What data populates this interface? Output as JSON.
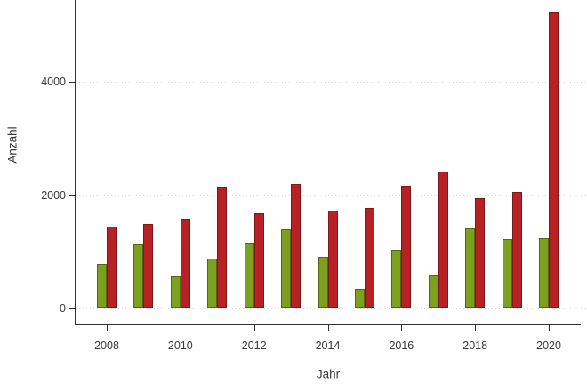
{
  "chart_data": {
    "type": "bar",
    "title": "",
    "xlabel": "Jahr",
    "ylabel": "Anzahl",
    "categories": [
      "2008",
      "2009",
      "2010",
      "2011",
      "2012",
      "2013",
      "2014",
      "2015",
      "2016",
      "2017",
      "2018",
      "2019",
      "2020"
    ],
    "series": [
      {
        "name": "green-series",
        "color": "#7ca11e",
        "values": [
          780,
          1130,
          570,
          880,
          1150,
          1390,
          910,
          350,
          1030,
          580,
          1410,
          1220,
          1240
        ]
      },
      {
        "name": "red-series",
        "color": "#b72025",
        "values": [
          1440,
          1490,
          1570,
          2150,
          1680,
          2200,
          1720,
          1770,
          2160,
          2420,
          1940,
          2050,
          5230
        ]
      }
    ],
    "ylim": [
      0,
      5440
    ],
    "yticks": [
      0,
      2000,
      4000
    ],
    "ytick_labels": [
      "0",
      "2000",
      "4000"
    ],
    "xtick_labels": [
      "2008",
      "2010",
      "2012",
      "2014",
      "2016",
      "2018",
      "2020"
    ],
    "grid": "horizontal-dotted",
    "legend_position": "none",
    "colors": {
      "axis": "#333333",
      "grid": "#d6d6d6",
      "text": "#383838"
    }
  }
}
